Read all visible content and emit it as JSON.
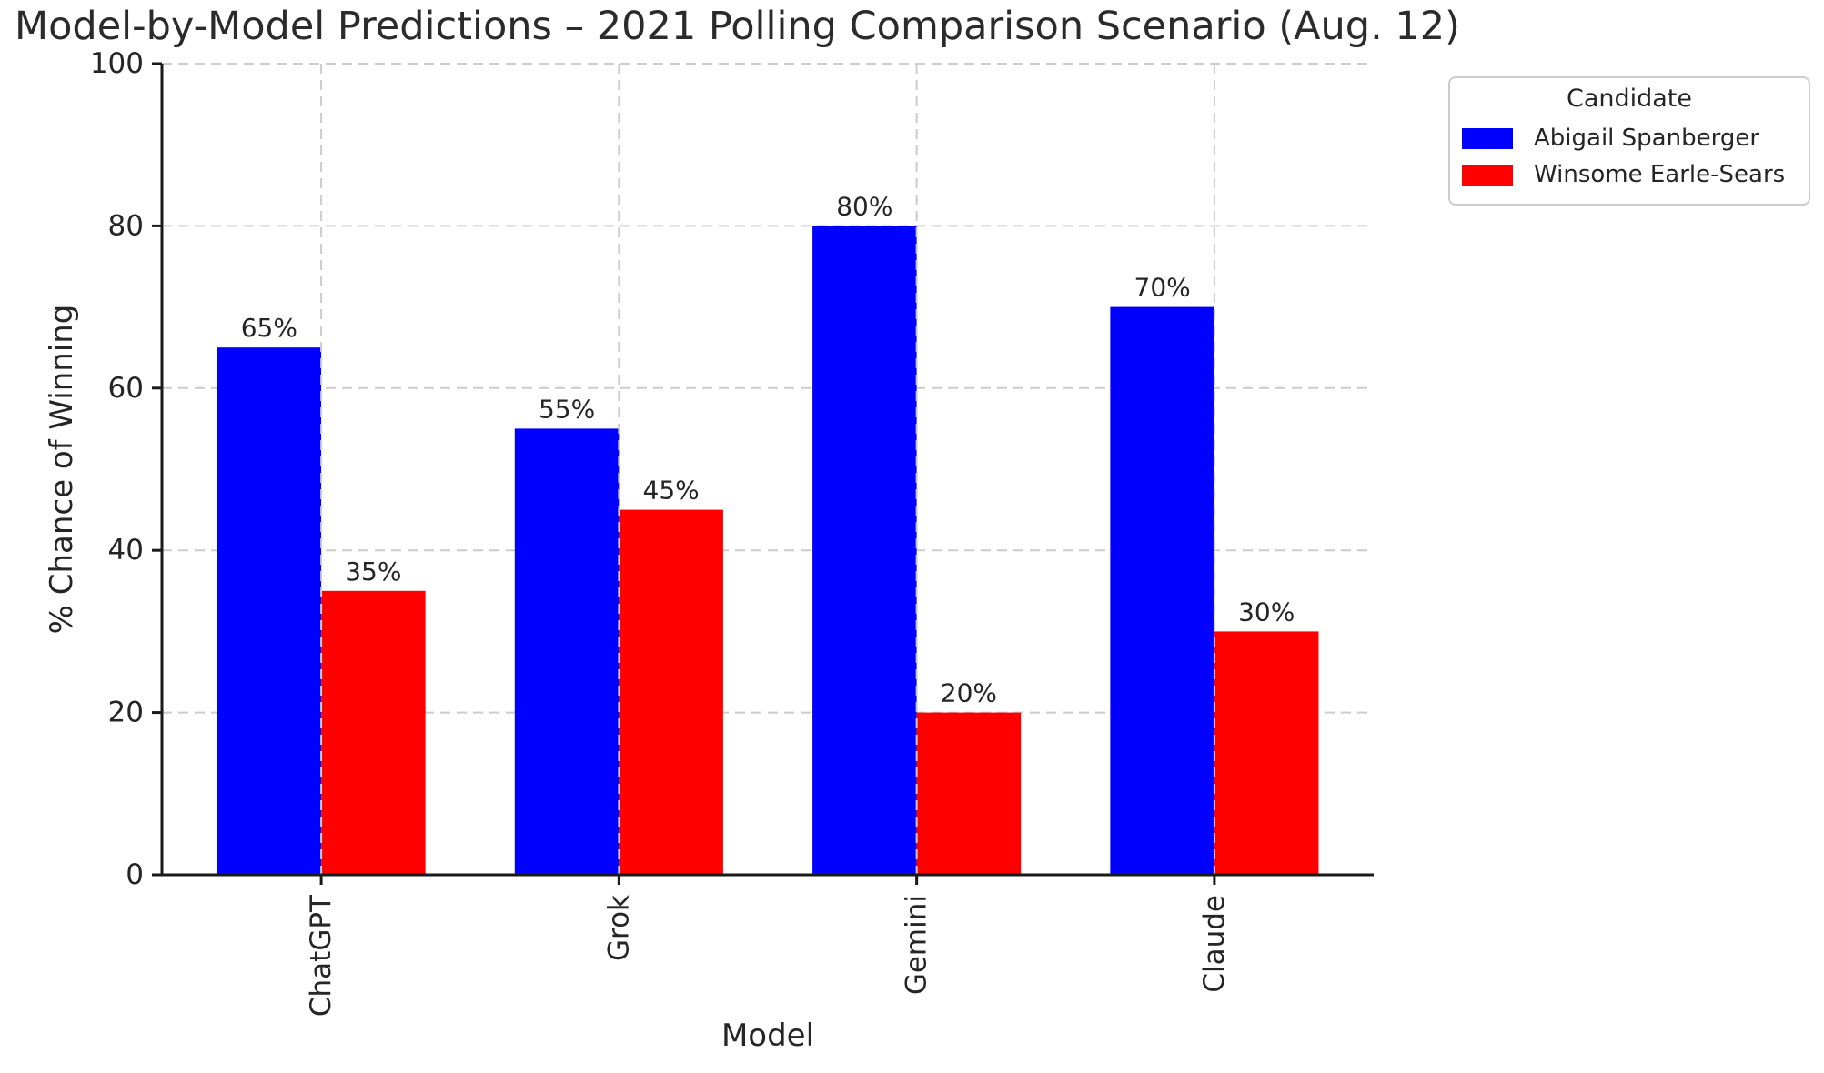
{
  "chart_data": {
    "type": "bar",
    "title": "Model-by-Model Predictions – 2021 Polling Comparison Scenario (Aug. 12)",
    "xlabel": "Model",
    "ylabel": "% Chance of Winning",
    "categories": [
      "ChatGPT",
      "Grok",
      "Gemini",
      "Claude"
    ],
    "series": [
      {
        "name": "Abigail Spanberger",
        "color": "#0000ff",
        "values": [
          65,
          55,
          80,
          70
        ],
        "value_labels": [
          "65%",
          "55%",
          "80%",
          "70%"
        ]
      },
      {
        "name": "Winsome Earle-Sears",
        "color": "#ff0000",
        "values": [
          35,
          45,
          20,
          30
        ],
        "value_labels": [
          "35%",
          "45%",
          "20%",
          "30%"
        ]
      }
    ],
    "ylim": [
      0,
      100
    ],
    "yticks": [
      0,
      20,
      40,
      60,
      80,
      100
    ],
    "ytick_labels": [
      "0",
      "20",
      "40",
      "60",
      "80",
      "100"
    ],
    "grid": {
      "enabled": true,
      "style": "dashed",
      "axes": "both"
    },
    "legend": {
      "title": "Candidate",
      "position": "upper-right"
    }
  },
  "colors": {
    "text": "#252525",
    "axis": "#1a1a1a",
    "grid": "#cccccc",
    "background": "#ffffff",
    "blue_bar": "#0000ff",
    "red_bar": "#ff0000"
  }
}
